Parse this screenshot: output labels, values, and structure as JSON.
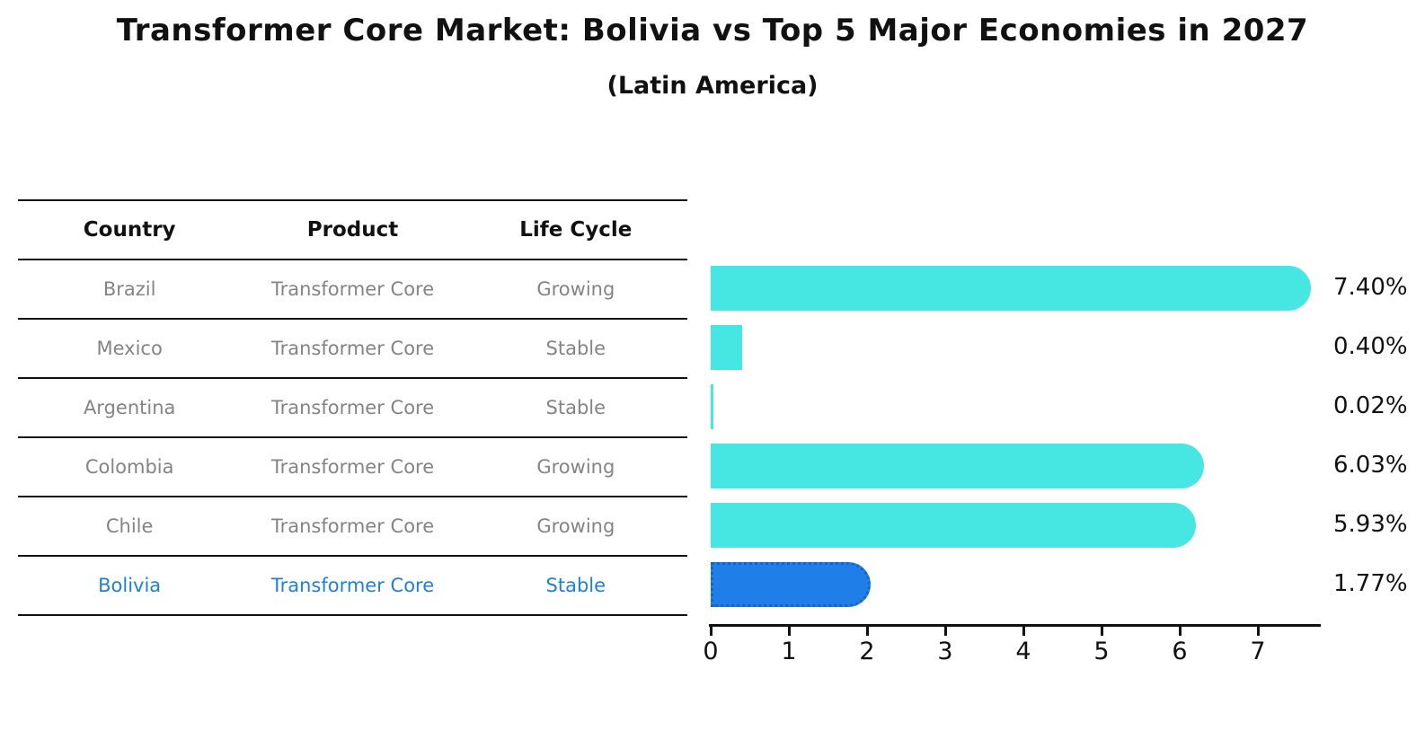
{
  "title": "Transformer Core Market: Bolivia vs Top 5 Major Economies in 2027",
  "subtitle": "(Latin America)",
  "table": {
    "headers": [
      "Country",
      "Product",
      "Life Cycle"
    ],
    "rows": [
      {
        "country": "Brazil",
        "product": "Transformer Core",
        "life_cycle": "Growing",
        "highlight": false
      },
      {
        "country": "Mexico",
        "product": "Transformer Core",
        "life_cycle": "Stable",
        "highlight": false
      },
      {
        "country": "Argentina",
        "product": "Transformer Core",
        "life_cycle": "Stable",
        "highlight": false
      },
      {
        "country": "Colombia",
        "product": "Transformer Core",
        "life_cycle": "Growing",
        "highlight": false
      },
      {
        "country": "Chile",
        "product": "Transformer Core",
        "life_cycle": "Growing",
        "highlight": false
      },
      {
        "country": "Bolivia",
        "product": "Transformer Core",
        "life_cycle": "Stable",
        "highlight": true
      }
    ]
  },
  "chart_data": {
    "type": "bar",
    "orientation": "horizontal",
    "title": "Transformer Core Market: Bolivia vs Top 5 Major Economies in 2027",
    "subtitle": "(Latin America)",
    "categories": [
      "Brazil",
      "Mexico",
      "Argentina",
      "Colombia",
      "Chile",
      "Bolivia"
    ],
    "values": [
      7.4,
      0.4,
      0.02,
      6.03,
      5.93,
      1.77
    ],
    "value_labels": [
      "7.40%",
      "0.40%",
      "0.02%",
      "6.03%",
      "5.93%",
      "1.77%"
    ],
    "xlabel": "",
    "ylabel": "",
    "xticks": [
      0,
      1,
      2,
      3,
      4,
      5,
      6,
      7
    ],
    "xlim": [
      0,
      7.8
    ],
    "grid": false,
    "legend": false,
    "highlight_index": 5
  },
  "colors": {
    "bar": "#46e6e3",
    "highlight_bar": "#1f7ee8",
    "highlight_border": "#1565c8",
    "highlight_text": "#2080d8",
    "row_text": "#848484",
    "header_text": "#111111",
    "axis": "#111111",
    "background": "#ffffff"
  }
}
